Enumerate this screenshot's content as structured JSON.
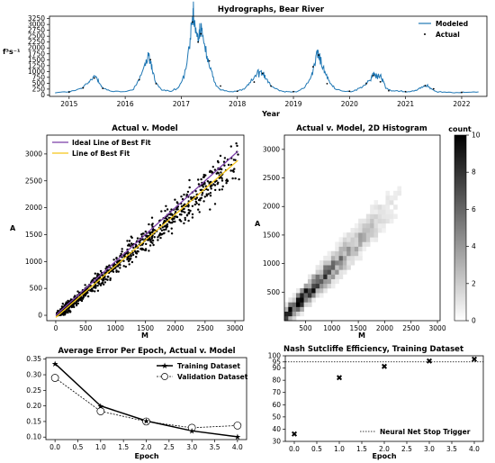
{
  "chart_data": [
    {
      "type": "line",
      "title": "Hydrographs, Bear River",
      "xlabel": "Year",
      "ylabel": "f³s⁻¹",
      "xlim": [
        2014.65,
        2022.45
      ],
      "ylim": [
        -60,
        3350
      ],
      "x_ticks": [
        "2015",
        "2016",
        "2017",
        "2018",
        "2019",
        "2020",
        "2021",
        "2022"
      ],
      "y_ticks": [
        0,
        250,
        500,
        750,
        1000,
        1250,
        1500,
        1750,
        2000,
        2250,
        2500,
        2750,
        3000,
        3250
      ],
      "legend": "top-right",
      "series": [
        {
          "name": "Modeled",
          "style": "line",
          "color": "#1f77b4",
          "x": [
            2014.75,
            2014.95,
            2015.1,
            2015.25,
            2015.35,
            2015.42,
            2015.47,
            2015.53,
            2015.6,
            2015.75,
            2016.0,
            2016.15,
            2016.25,
            2016.35,
            2016.42,
            2016.45,
            2016.48,
            2016.55,
            2016.65,
            2016.8,
            2016.95,
            2017.05,
            2017.15,
            2017.2,
            2017.22,
            2017.26,
            2017.3,
            2017.33,
            2017.37,
            2017.42,
            2017.48,
            2017.55,
            2017.62,
            2017.7,
            2017.85,
            2018.0,
            2018.15,
            2018.25,
            2018.35,
            2018.42,
            2018.46,
            2018.52,
            2018.6,
            2018.75,
            2018.9,
            2019.05,
            2019.2,
            2019.32,
            2019.38,
            2019.42,
            2019.46,
            2019.52,
            2019.58,
            2019.65,
            2019.75,
            2019.9,
            2020.05,
            2020.2,
            2020.3,
            2020.38,
            2020.42,
            2020.46,
            2020.5,
            2020.55,
            2020.6,
            2020.65,
            2020.75,
            2020.9,
            2021.05,
            2021.2,
            2021.3,
            2021.38,
            2021.45,
            2021.55,
            2021.7,
            2021.9,
            2022.05,
            2022.3
          ],
          "y": [
            100,
            130,
            180,
            320,
            540,
            700,
            820,
            600,
            300,
            150,
            140,
            250,
            700,
            1250,
            1600,
            1450,
            1100,
            500,
            220,
            150,
            300,
            800,
            2000,
            3150,
            3250,
            2650,
            2300,
            2750,
            2600,
            2000,
            1500,
            900,
            400,
            200,
            150,
            170,
            300,
            600,
            900,
            1000,
            950,
            700,
            400,
            190,
            130,
            150,
            320,
            800,
            1300,
            1800,
            1600,
            1200,
            900,
            500,
            250,
            170,
            150,
            300,
            500,
            650,
            900,
            850,
            750,
            800,
            600,
            300,
            180,
            150,
            130,
            200,
            350,
            420,
            280,
            150,
            120,
            100,
            120,
            130
          ]
        },
        {
          "name": "Actual",
          "style": "points",
          "color": "#000000",
          "x": [
            2015.0,
            2015.25,
            2015.45,
            2015.6,
            2016.25,
            2016.45,
            2016.55,
            2017.2,
            2017.3,
            2017.35,
            2017.5,
            2017.7,
            2018.0,
            2018.3,
            2018.45,
            2018.6,
            2019.0,
            2019.35,
            2019.45,
            2019.6,
            2020.0,
            2020.3,
            2020.42,
            2020.55,
            2020.7,
            2021.0,
            2021.35,
            2021.5,
            2022.0
          ],
          "y": [
            120,
            300,
            720,
            280,
            650,
            1500,
            480,
            3100,
            2250,
            2600,
            1450,
            380,
            160,
            550,
            920,
            380,
            140,
            1200,
            1700,
            480,
            160,
            480,
            820,
            560,
            180,
            140,
            400,
            260,
            110
          ]
        }
      ]
    },
    {
      "type": "scatter",
      "title": "Actual v. Model",
      "xlabel": "M",
      "ylabel": "A",
      "xlim": [
        -150,
        3150
      ],
      "ylim": [
        -100,
        3350
      ],
      "x_ticks": [
        0,
        500,
        1000,
        1500,
        2000,
        2500,
        3000
      ],
      "y_ticks": [
        0,
        500,
        1000,
        1500,
        2000,
        2500,
        3000
      ],
      "legend": "top-left",
      "lines": [
        {
          "name": "Ideal Line of Best Fit",
          "color": "#7b3fa7",
          "x": [
            0,
            3050
          ],
          "y": [
            0,
            3050
          ]
        },
        {
          "name": "Line of Best Fit",
          "color": "#f5c518",
          "x": [
            0,
            3050
          ],
          "y": [
            -40,
            2880
          ]
        }
      ]
    },
    {
      "type": "heatmap",
      "title": "Actual v. Model, 2D Histogram",
      "xlabel": "M",
      "ylabel": "A",
      "xlim": [
        100,
        3050
      ],
      "ylim": [
        0,
        3250
      ],
      "x_ticks": [
        500,
        1000,
        1500,
        2000,
        2500,
        3000
      ],
      "y_ticks": [
        500,
        1000,
        1500,
        2000,
        2500,
        3000
      ],
      "colorbar_label": "count",
      "colorbar_ticks": [
        0,
        2,
        4,
        6,
        8,
        10
      ],
      "vmin": 0,
      "vmax": 10,
      "bins": 40
    },
    {
      "type": "line",
      "title": "Average Error Per Epoch, Actual v. Model",
      "xlabel": "Epoch",
      "ylabel": "",
      "xlim": [
        -0.2,
        4.2
      ],
      "ylim": [
        0.092,
        0.355
      ],
      "x_ticks": [
        "0.0",
        "0.5",
        "1.0",
        "1.5",
        "2.0",
        "2.5",
        "3.0",
        "3.5",
        "4.0"
      ],
      "y_ticks": [
        "0.10",
        "0.15",
        "0.20",
        "0.25",
        "0.30",
        "0.35"
      ],
      "legend": "top-right",
      "categories": [
        0,
        1,
        2,
        3,
        4
      ],
      "series": [
        {
          "name": "Training Dataset",
          "values": [
            0.336,
            0.2,
            0.152,
            0.12,
            0.101
          ]
        },
        {
          "name": "Validation Dataset",
          "values": [
            0.29,
            0.183,
            0.15,
            0.13,
            0.137
          ]
        }
      ]
    },
    {
      "type": "scatter",
      "title": "Nash Sutcliffe Efficiency, Training Dataset",
      "xlabel": "Epoch",
      "ylabel": "",
      "xlim": [
        -0.2,
        4.2
      ],
      "ylim": [
        30,
        100
      ],
      "x_ticks": [
        "0.0",
        "0.5",
        "1.0",
        "1.5",
        "2.0",
        "2.5",
        "3.0",
        "3.5",
        "4.0"
      ],
      "y_ticks": [
        30,
        40,
        50,
        60,
        70,
        80,
        90,
        95,
        100
      ],
      "legend": "bottom-right",
      "threshold": {
        "name": "Neural Net Stop Trigger",
        "value": 95
      },
      "x": [
        0,
        1,
        2,
        3,
        4
      ],
      "y": [
        36,
        82,
        91,
        95.5,
        97
      ]
    }
  ]
}
